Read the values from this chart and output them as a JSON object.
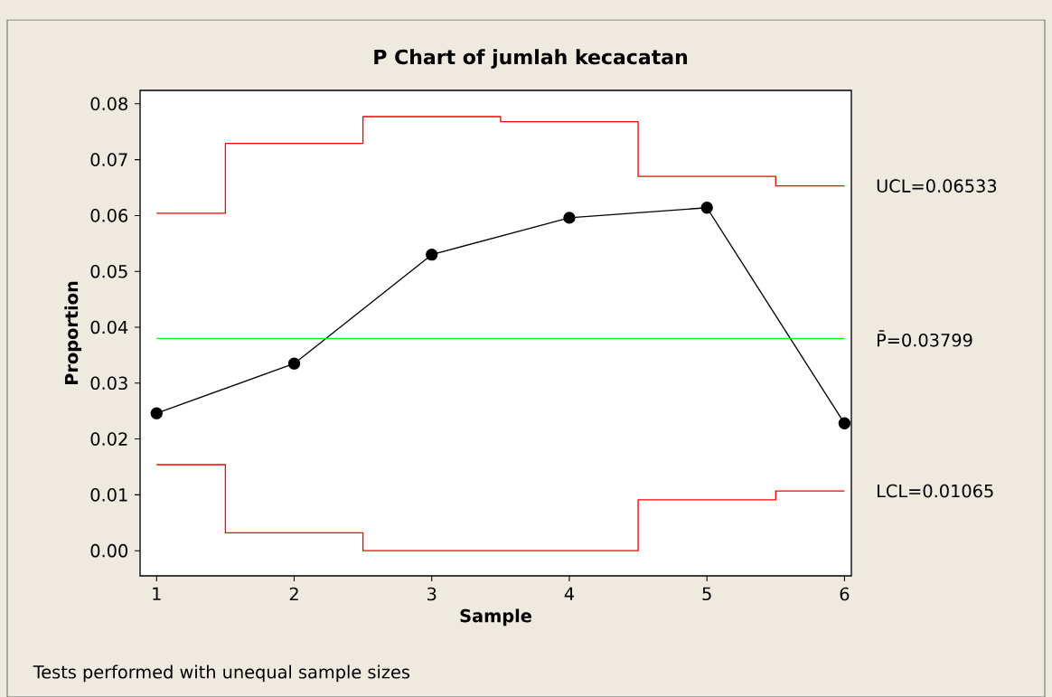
{
  "chart_data": {
    "type": "line",
    "title": "P Chart of jumlah kecacatan",
    "xlabel": "Sample",
    "ylabel": "Proportion",
    "annotations": [
      "Tests performed with unequal sample sizes"
    ],
    "x": [
      1,
      2,
      3,
      4,
      5,
      6
    ],
    "xlim": [
      0.88,
      6.05
    ],
    "ylim": [
      -0.0045,
      0.0824
    ],
    "xticks": [
      1,
      2,
      3,
      4,
      5,
      6
    ],
    "yticks": [
      {
        "value": 0,
        "label": "0.00"
      },
      0.01,
      0.02,
      0.03,
      0.04,
      0.05,
      0.06,
      0.07,
      0.08
    ],
    "marker": "circle",
    "series": [
      {
        "type": "step",
        "name": "UCL=0.06533",
        "color": "#ff0000",
        "marker": "none",
        "values": [
          0.0604,
          0.0729,
          0.0777,
          0.0768,
          0.067,
          0.0653
        ]
      },
      {
        "type": "step",
        "name": "LCL=0.01065",
        "color": "#ff0000",
        "marker": "none",
        "values": [
          0.0154,
          0.0032,
          0,
          0,
          0.0091,
          0.0107
        ]
      },
      {
        "color": "#000000",
        "values": [
          0.0246,
          0.0335,
          0.053,
          0.0596,
          0.0614,
          0.0228
        ]
      }
    ],
    "ref_lines": [
      {
        "axis": "y",
        "value": 0.03799,
        "label": "P̄=0.03799",
        "color": "#00ff00"
      }
    ]
  }
}
